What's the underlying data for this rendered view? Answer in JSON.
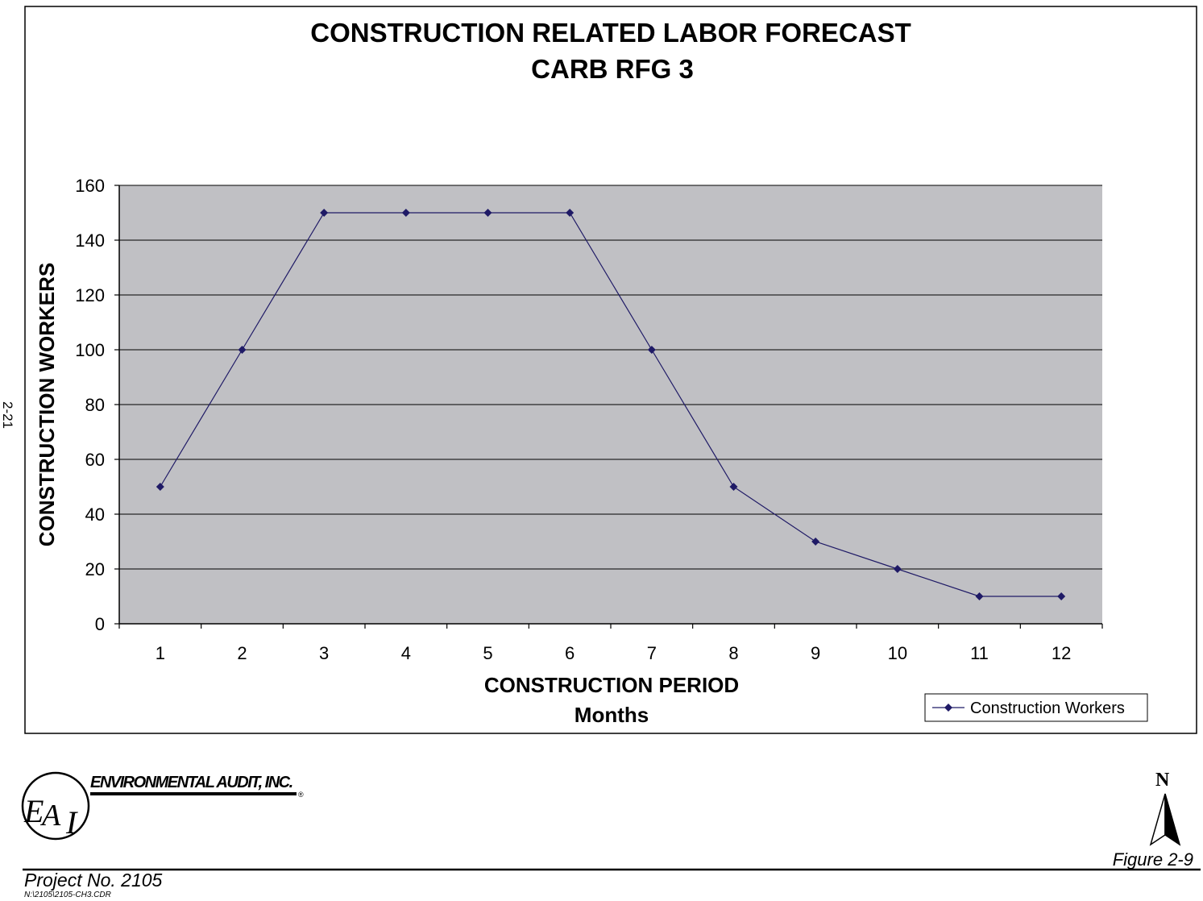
{
  "page": {
    "page_number": "2-21",
    "company_name": "ENVIRONMENTAL AUDIT, INC.",
    "logo_letters": "EAI",
    "registered_mark": "®",
    "figure_label": "Figure  2-9",
    "project_no": "Project No. 2105",
    "file_path": "N:\\2105\\2105-CH3.CDR",
    "north_label": "N"
  },
  "chart_data": {
    "type": "line",
    "title": "CONSTRUCTION RELATED LABOR FORECAST",
    "subtitle": "CARB RFG 3",
    "xlabel": "CONSTRUCTION PERIOD",
    "xlabel_sub": "Months",
    "ylabel": "CONSTRUCTION WORKERS",
    "categories": [
      "1",
      "2",
      "3",
      "4",
      "5",
      "6",
      "7",
      "8",
      "9",
      "10",
      "11",
      "12"
    ],
    "series": [
      {
        "name": "Construction Workers",
        "values": [
          50,
          100,
          150,
          150,
          150,
          150,
          100,
          50,
          30,
          20,
          10,
          10
        ],
        "color": "#1f1a66"
      }
    ],
    "ylim": [
      0,
      160
    ],
    "yticks": [
      0,
      20,
      40,
      60,
      80,
      100,
      120,
      140,
      160
    ],
    "grid": true,
    "plot_background": "#c0c0c4",
    "legend_position": "bottom-right"
  }
}
